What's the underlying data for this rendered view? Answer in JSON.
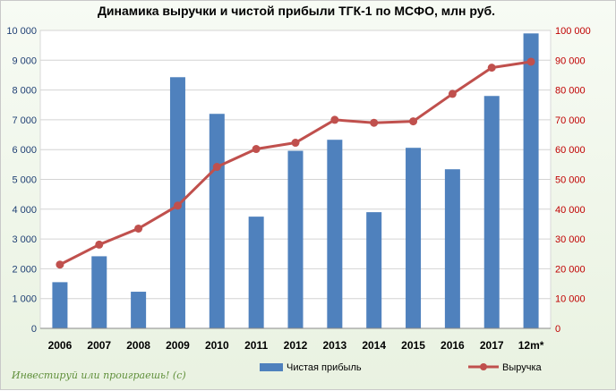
{
  "chart_data": {
    "type": "bar+line",
    "title": "Динамика выручки и чистой прибыли ТГК-1 по МСФО, млн руб.",
    "categories": [
      "2006",
      "2007",
      "2008",
      "2009",
      "2010",
      "2011",
      "2012",
      "2013",
      "2014",
      "2015",
      "2016",
      "2017",
      "12m*"
    ],
    "series": [
      {
        "name": "Чистая прибыль",
        "type": "bar",
        "axis": "left",
        "color": "#4f81bd",
        "values": [
          1550,
          2420,
          1230,
          8430,
          7200,
          3750,
          5960,
          6330,
          3900,
          6060,
          5340,
          7800,
          9900
        ]
      },
      {
        "name": "Выручка",
        "type": "line",
        "axis": "right",
        "color": "#c0504d",
        "values": [
          21400,
          28100,
          33500,
          41200,
          54200,
          60200,
          62300,
          70000,
          69000,
          69500,
          78700,
          87500,
          89500
        ]
      }
    ],
    "y_left": {
      "min": 0,
      "max": 10000,
      "ticks": [
        "0",
        "1 000",
        "2 000",
        "3 000",
        "4 000",
        "5 000",
        "6 000",
        "7 000",
        "8 000",
        "9 000",
        "10 000"
      ]
    },
    "y_right": {
      "min": 0,
      "max": 100000,
      "ticks": [
        "0",
        "10 000",
        "20 000",
        "30 000",
        "40 000",
        "50 000",
        "60 000",
        "70 000",
        "80 000",
        "90 000",
        "100 000"
      ]
    },
    "grid": true,
    "legend_position": "bottom"
  },
  "watermark": "Инвестируй или проиграешь! (с)"
}
